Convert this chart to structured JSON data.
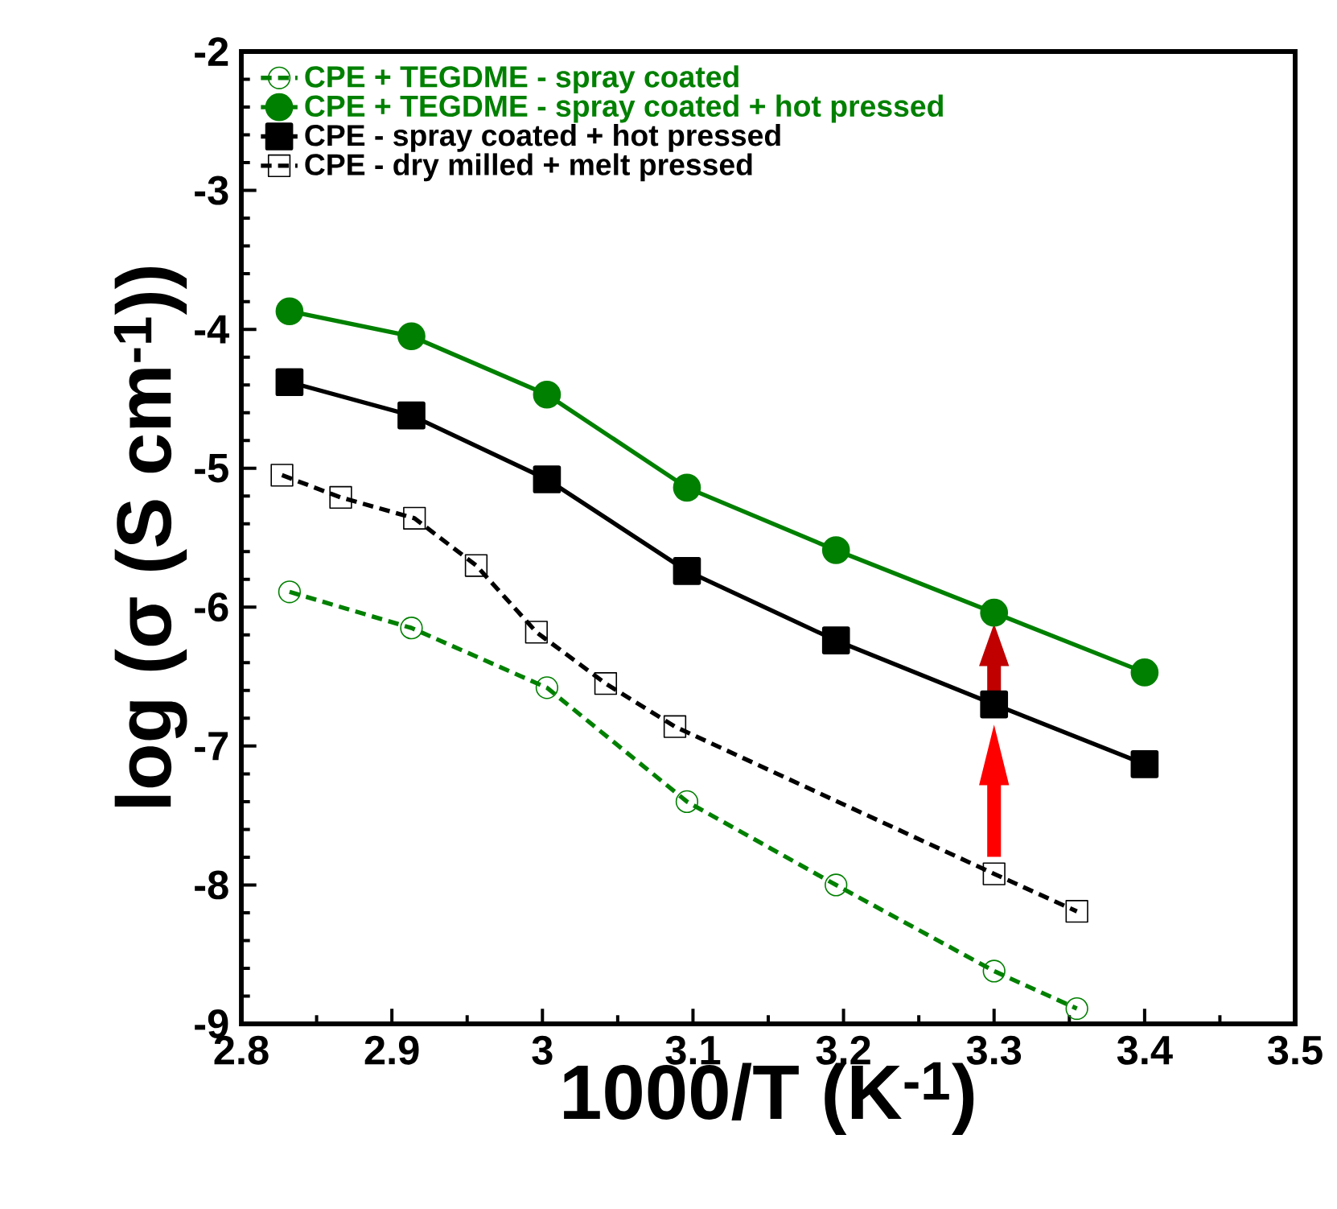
{
  "chart_data": {
    "type": "line",
    "xlabel": "1000/T (K$^{-1}$)",
    "ylabel": "log (σ (S cm$^{-1}$))",
    "xlim": [
      2.8,
      3.5
    ],
    "ylim": [
      -9,
      -2
    ],
    "xticks": [
      2.8,
      2.9,
      3,
      3.1,
      3.2,
      3.3,
      3.4,
      3.5
    ],
    "yticks": [
      -9,
      -8,
      -7,
      -6,
      -5,
      -4,
      -3,
      -2
    ],
    "legend": "top left",
    "grid": false,
    "series": [
      {
        "name": "CPE + TEGDME - spray coated",
        "color": "#008000",
        "marker": "circle",
        "line_style": "dashed",
        "x": [
          2.832,
          2.913,
          3.003,
          3.096,
          3.195,
          3.3,
          3.355
        ],
        "values": [
          -5.89,
          -6.15,
          -6.58,
          -7.4,
          -8.0,
          -8.62,
          -8.89
        ]
      },
      {
        "name": "CPE + TEGDME - spray coated + hot pressed",
        "color": "#008000",
        "marker": "circle",
        "line_style": "solid",
        "x": [
          2.832,
          2.913,
          3.003,
          3.096,
          3.195,
          3.3,
          3.4
        ],
        "values": [
          -3.87,
          -4.05,
          -4.47,
          -5.14,
          -5.59,
          -6.04,
          -6.47
        ]
      },
      {
        "name": "CPE - spray coated + hot pressed",
        "color": "#000000",
        "marker": "square",
        "line_style": "solid",
        "x": [
          2.832,
          2.913,
          3.003,
          3.096,
          3.195,
          3.3,
          3.4
        ],
        "values": [
          -4.38,
          -4.62,
          -5.08,
          -5.74,
          -6.24,
          -6.7,
          -7.13
        ]
      },
      {
        "name": "CPE - dry milled + melt pressed",
        "color": "#000000",
        "marker": "square",
        "line_style": "dashed",
        "x": [
          2.827,
          2.866,
          2.915,
          2.956,
          2.996,
          3.042,
          3.088,
          3.3,
          3.355
        ],
        "values": [
          -5.05,
          -5.21,
          -5.36,
          -5.7,
          -6.18,
          -6.55,
          -6.86,
          -7.92,
          -8.19
        ]
      }
    ]
  }
}
